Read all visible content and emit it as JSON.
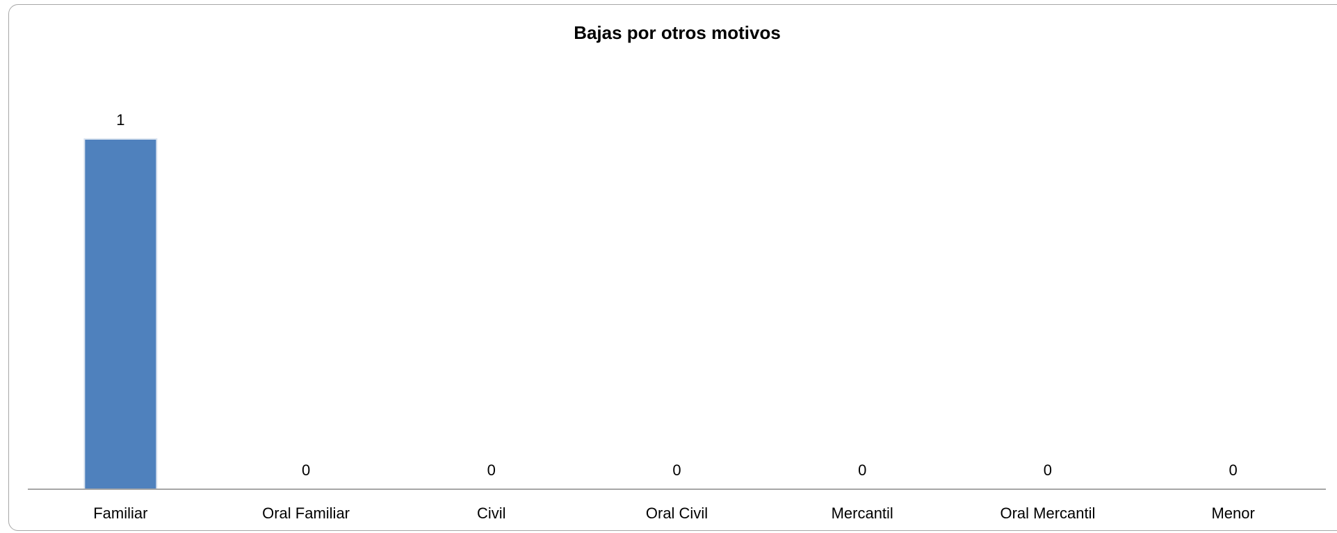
{
  "chart_data": {
    "type": "bar",
    "title": "Bajas por otros motivos",
    "categories": [
      "Familiar",
      "Oral Familiar",
      "Civil",
      "Oral Civil",
      "Mercantil",
      "Oral Mercantil",
      "Menor"
    ],
    "values": [
      1,
      0,
      0,
      0,
      0,
      0,
      0
    ],
    "ylim": [
      0,
      1
    ],
    "grid": false,
    "legend": "none",
    "bar_color": "#4F81BD",
    "axis_color": "#A6A6A6"
  }
}
